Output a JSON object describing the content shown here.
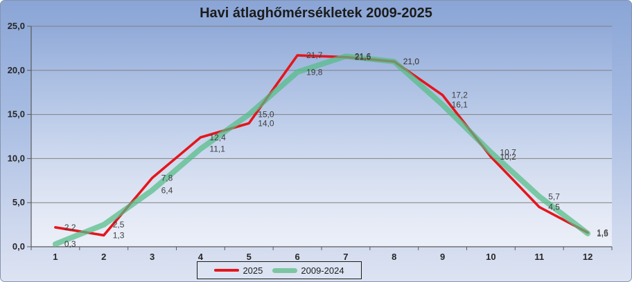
{
  "title": "Havi átlaghőmérsékletek 2009-2025",
  "chart_data": {
    "type": "line",
    "categories": [
      "1",
      "2",
      "3",
      "4",
      "5",
      "6",
      "7",
      "8",
      "9",
      "10",
      "11",
      "12"
    ],
    "series": [
      {
        "name": "2025",
        "color": "#e4161c",
        "line_width": 3.6,
        "opacity": 1,
        "values": [
          2.2,
          1.3,
          7.8,
          12.4,
          14.0,
          21.7,
          21.5,
          21.0,
          17.2,
          10.2,
          4.5,
          1.6
        ],
        "labels": [
          "2,2",
          "1,3",
          "7,8",
          "12,4",
          "14,0",
          "21,7",
          "21,5",
          "21,0",
          "17,2",
          "10,2",
          "4,5",
          "1,6"
        ]
      },
      {
        "name": "2009-2024",
        "color": "#54bd87",
        "line_width": 8,
        "opacity": 0.72,
        "values": [
          0.3,
          2.5,
          6.4,
          11.1,
          15.0,
          19.8,
          21.6,
          21.0,
          16.1,
          10.7,
          5.7,
          1.5
        ],
        "labels": [
          "0,3",
          "2,5",
          "6,4",
          "11,1",
          "15,0",
          "19,8",
          "21,6",
          "21,0",
          "16,1",
          "10,7",
          "5,7",
          "1,5"
        ]
      }
    ],
    "title": "Havi átlaghőmérsékletek 2009-2025",
    "xlabel": "",
    "ylabel": "",
    "ylim": [
      0,
      25
    ],
    "ytick_step": 5,
    "ytick_labels": [
      "0,0",
      "5,0",
      "10,0",
      "15,0",
      "20,0",
      "25,0"
    ],
    "grid": true,
    "legend_position": "bottom-center",
    "label_color": "#3d3d3d",
    "axis_text_color": "#262626",
    "gridline_color": "#808080",
    "axis_line_color": "#595959"
  }
}
